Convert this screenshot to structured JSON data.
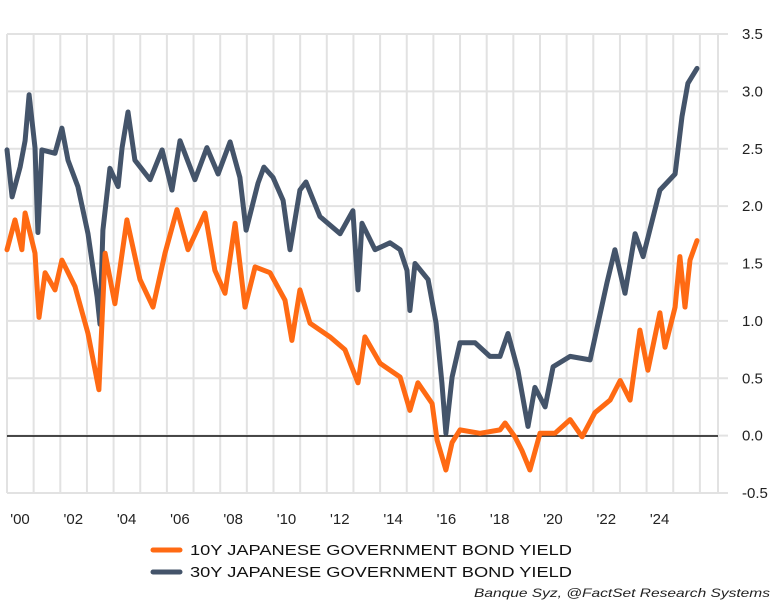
{
  "chart_data": {
    "type": "line",
    "title": "",
    "xlabel": "",
    "ylabel": "",
    "xlim": [
      2000,
      2026.75
    ],
    "ylim": [
      -0.5,
      3.5
    ],
    "grid": true,
    "y_ticks": [
      "3.5",
      "3.0",
      "2.5",
      "2.0",
      "1.5",
      "1.0",
      "0.5",
      "0.0",
      "-0.5"
    ],
    "y_tick_values": [
      3.5,
      3.0,
      2.5,
      2.0,
      1.5,
      1.0,
      0.5,
      0.0,
      -0.5
    ],
    "x_tick_labels": [
      "'00",
      "'02",
      "'04",
      "'06",
      "'08",
      "'10",
      "'12",
      "'14",
      "'16",
      "'18",
      "'20",
      "'22",
      "'24"
    ],
    "x_tick_years": [
      2000,
      2002,
      2004,
      2006,
      2008,
      2010,
      2012,
      2014,
      2016,
      2018,
      2020,
      2022,
      2024
    ],
    "legend_placement": "bottom",
    "series": [
      {
        "name": "10Y JAPANESE GOVERNMENT BOND YIELD",
        "color": "#ff6a13",
        "x": [
          2000.0,
          2000.3,
          2000.56,
          2000.68,
          2001.05,
          2001.2,
          2001.43,
          2001.8,
          2002.06,
          2002.55,
          2003.04,
          2003.45,
          2003.68,
          2004.05,
          2004.5,
          2004.99,
          2005.48,
          2005.93,
          2006.38,
          2006.79,
          2007.43,
          2007.8,
          2008.18,
          2008.56,
          2008.93,
          2009.31,
          2009.87,
          2010.43,
          2010.69,
          2010.99,
          2011.37,
          2012.12,
          2012.68,
          2013.17,
          2013.43,
          2014.0,
          2014.75,
          2015.12,
          2015.42,
          2015.95,
          2016.14,
          2016.47,
          2016.7,
          2017.0,
          2017.75,
          2018.5,
          2018.69,
          2019.06,
          2019.32,
          2019.62,
          2020.0,
          2020.56,
          2021.13,
          2021.58,
          2022.06,
          2022.63,
          2023.01,
          2023.38,
          2023.75,
          2024.05,
          2024.5,
          2024.69,
          2025.07,
          2025.25,
          2025.44,
          2025.63,
          2025.89
        ],
        "y": [
          1.62,
          1.88,
          1.62,
          1.94,
          1.59,
          1.03,
          1.42,
          1.27,
          1.53,
          1.3,
          0.89,
          0.4,
          1.59,
          1.15,
          1.88,
          1.36,
          1.12,
          1.59,
          1.97,
          1.62,
          1.94,
          1.44,
          1.24,
          1.85,
          1.12,
          1.47,
          1.42,
          1.18,
          0.83,
          1.27,
          0.98,
          0.86,
          0.75,
          0.46,
          0.86,
          0.63,
          0.51,
          0.22,
          0.46,
          0.28,
          -0.04,
          -0.3,
          -0.06,
          0.05,
          0.02,
          0.05,
          0.11,
          -0.01,
          -0.13,
          -0.3,
          0.02,
          0.02,
          0.14,
          -0.01,
          0.2,
          0.31,
          0.48,
          0.31,
          0.92,
          0.57,
          1.07,
          0.77,
          1.12,
          1.56,
          1.12,
          1.53,
          1.7
        ]
      },
      {
        "name": "30Y JAPANESE GOVERNMENT BOND YIELD",
        "color": "#44546a",
        "x": [
          2000.0,
          2000.19,
          2000.49,
          2000.68,
          2000.83,
          2001.05,
          2001.16,
          2001.31,
          2001.8,
          2002.06,
          2002.29,
          2002.66,
          2003.04,
          2003.38,
          2003.49,
          2003.6,
          2003.86,
          2004.17,
          2004.32,
          2004.54,
          2004.8,
          2005.37,
          2005.82,
          2006.19,
          2006.49,
          2007.05,
          2007.5,
          2007.92,
          2008.37,
          2008.74,
          2008.97,
          2009.31,
          2009.42,
          2009.64,
          2009.98,
          2010.36,
          2010.62,
          2010.99,
          2011.22,
          2011.74,
          2012.5,
          2012.98,
          2013.17,
          2013.32,
          2013.81,
          2014.37,
          2014.75,
          2015.01,
          2015.12,
          2015.31,
          2015.8,
          2016.1,
          2016.32,
          2016.47,
          2016.7,
          2017.0,
          2017.56,
          2018.12,
          2018.5,
          2018.8,
          2019.17,
          2019.55,
          2019.81,
          2020.19,
          2020.49,
          2021.13,
          2021.88,
          2022.18,
          2022.51,
          2022.81,
          2023.19,
          2023.57,
          2023.87,
          2024.5,
          2025.07,
          2025.33,
          2025.55,
          2025.89
        ],
        "y": [
          2.49,
          2.08,
          2.34,
          2.57,
          2.97,
          2.51,
          1.77,
          2.49,
          2.46,
          2.68,
          2.4,
          2.17,
          1.76,
          1.21,
          0.97,
          1.79,
          2.33,
          2.17,
          2.51,
          2.82,
          2.4,
          2.23,
          2.49,
          2.14,
          2.57,
          2.23,
          2.51,
          2.28,
          2.56,
          2.25,
          1.79,
          2.1,
          2.2,
          2.34,
          2.25,
          2.05,
          1.62,
          2.14,
          2.21,
          1.91,
          1.76,
          1.96,
          1.27,
          1.85,
          1.62,
          1.68,
          1.62,
          1.44,
          1.09,
          1.5,
          1.36,
          0.98,
          0.46,
          0.02,
          0.51,
          0.81,
          0.81,
          0.69,
          0.69,
          0.89,
          0.57,
          0.08,
          0.42,
          0.25,
          0.6,
          0.69,
          0.66,
          0.98,
          1.33,
          1.62,
          1.24,
          1.76,
          1.56,
          2.14,
          2.28,
          2.78,
          3.07,
          3.2
        ]
      }
    ],
    "source": "Banque Syz, @FactSet Research Systems"
  }
}
